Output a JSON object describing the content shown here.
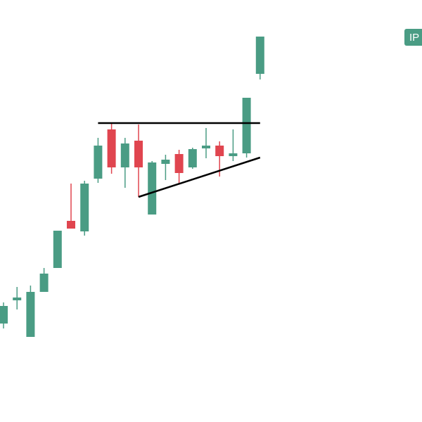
{
  "chart_data": {
    "type": "candlestick",
    "badge": "IP",
    "up_color": "#4a9c84",
    "down_color": "#e0454f",
    "line_color": "#000000",
    "ylim": [
      0,
      600
    ],
    "candles": [
      {
        "open": 140,
        "high": 170,
        "low": 133,
        "close": 165
      },
      {
        "open": 173,
        "high": 192,
        "low": 160,
        "close": 177
      },
      {
        "open": 121,
        "high": 194,
        "low": 121,
        "close": 185
      },
      {
        "open": 185,
        "high": 219,
        "low": 185,
        "close": 211
      },
      {
        "open": 219,
        "high": 272,
        "low": 219,
        "close": 272
      },
      {
        "open": 286,
        "high": 339,
        "low": 275,
        "close": 275
      },
      {
        "open": 271,
        "high": 343,
        "low": 265,
        "close": 339
      },
      {
        "open": 346,
        "high": 404,
        "low": 340,
        "close": 393
      },
      {
        "open": 416,
        "high": 425,
        "low": 353,
        "close": 362
      },
      {
        "open": 362,
        "high": 404,
        "low": 333,
        "close": 396
      },
      {
        "open": 400,
        "high": 423,
        "low": 320,
        "close": 362
      },
      {
        "open": 295,
        "high": 371,
        "low": 295,
        "close": 369
      },
      {
        "open": 367,
        "high": 380,
        "low": 344,
        "close": 373
      },
      {
        "open": 381,
        "high": 387,
        "low": 338,
        "close": 354
      },
      {
        "open": 362,
        "high": 390,
        "low": 360,
        "close": 388
      },
      {
        "open": 389,
        "high": 418,
        "low": 375,
        "close": 393
      },
      {
        "open": 393,
        "high": 399,
        "low": 349,
        "close": 378
      },
      {
        "open": 378,
        "high": 416,
        "low": 371,
        "close": 382
      },
      {
        "open": 382,
        "high": 461,
        "low": 376,
        "close": 461
      },
      {
        "open": 495,
        "high": 548,
        "low": 487,
        "close": 548
      }
    ],
    "trend_lines": [
      {
        "x0": 7,
        "y0": 425,
        "x1": 19,
        "y1": 425
      },
      {
        "x0": 10,
        "y0": 320,
        "x1": 19,
        "y1": 376
      }
    ]
  }
}
